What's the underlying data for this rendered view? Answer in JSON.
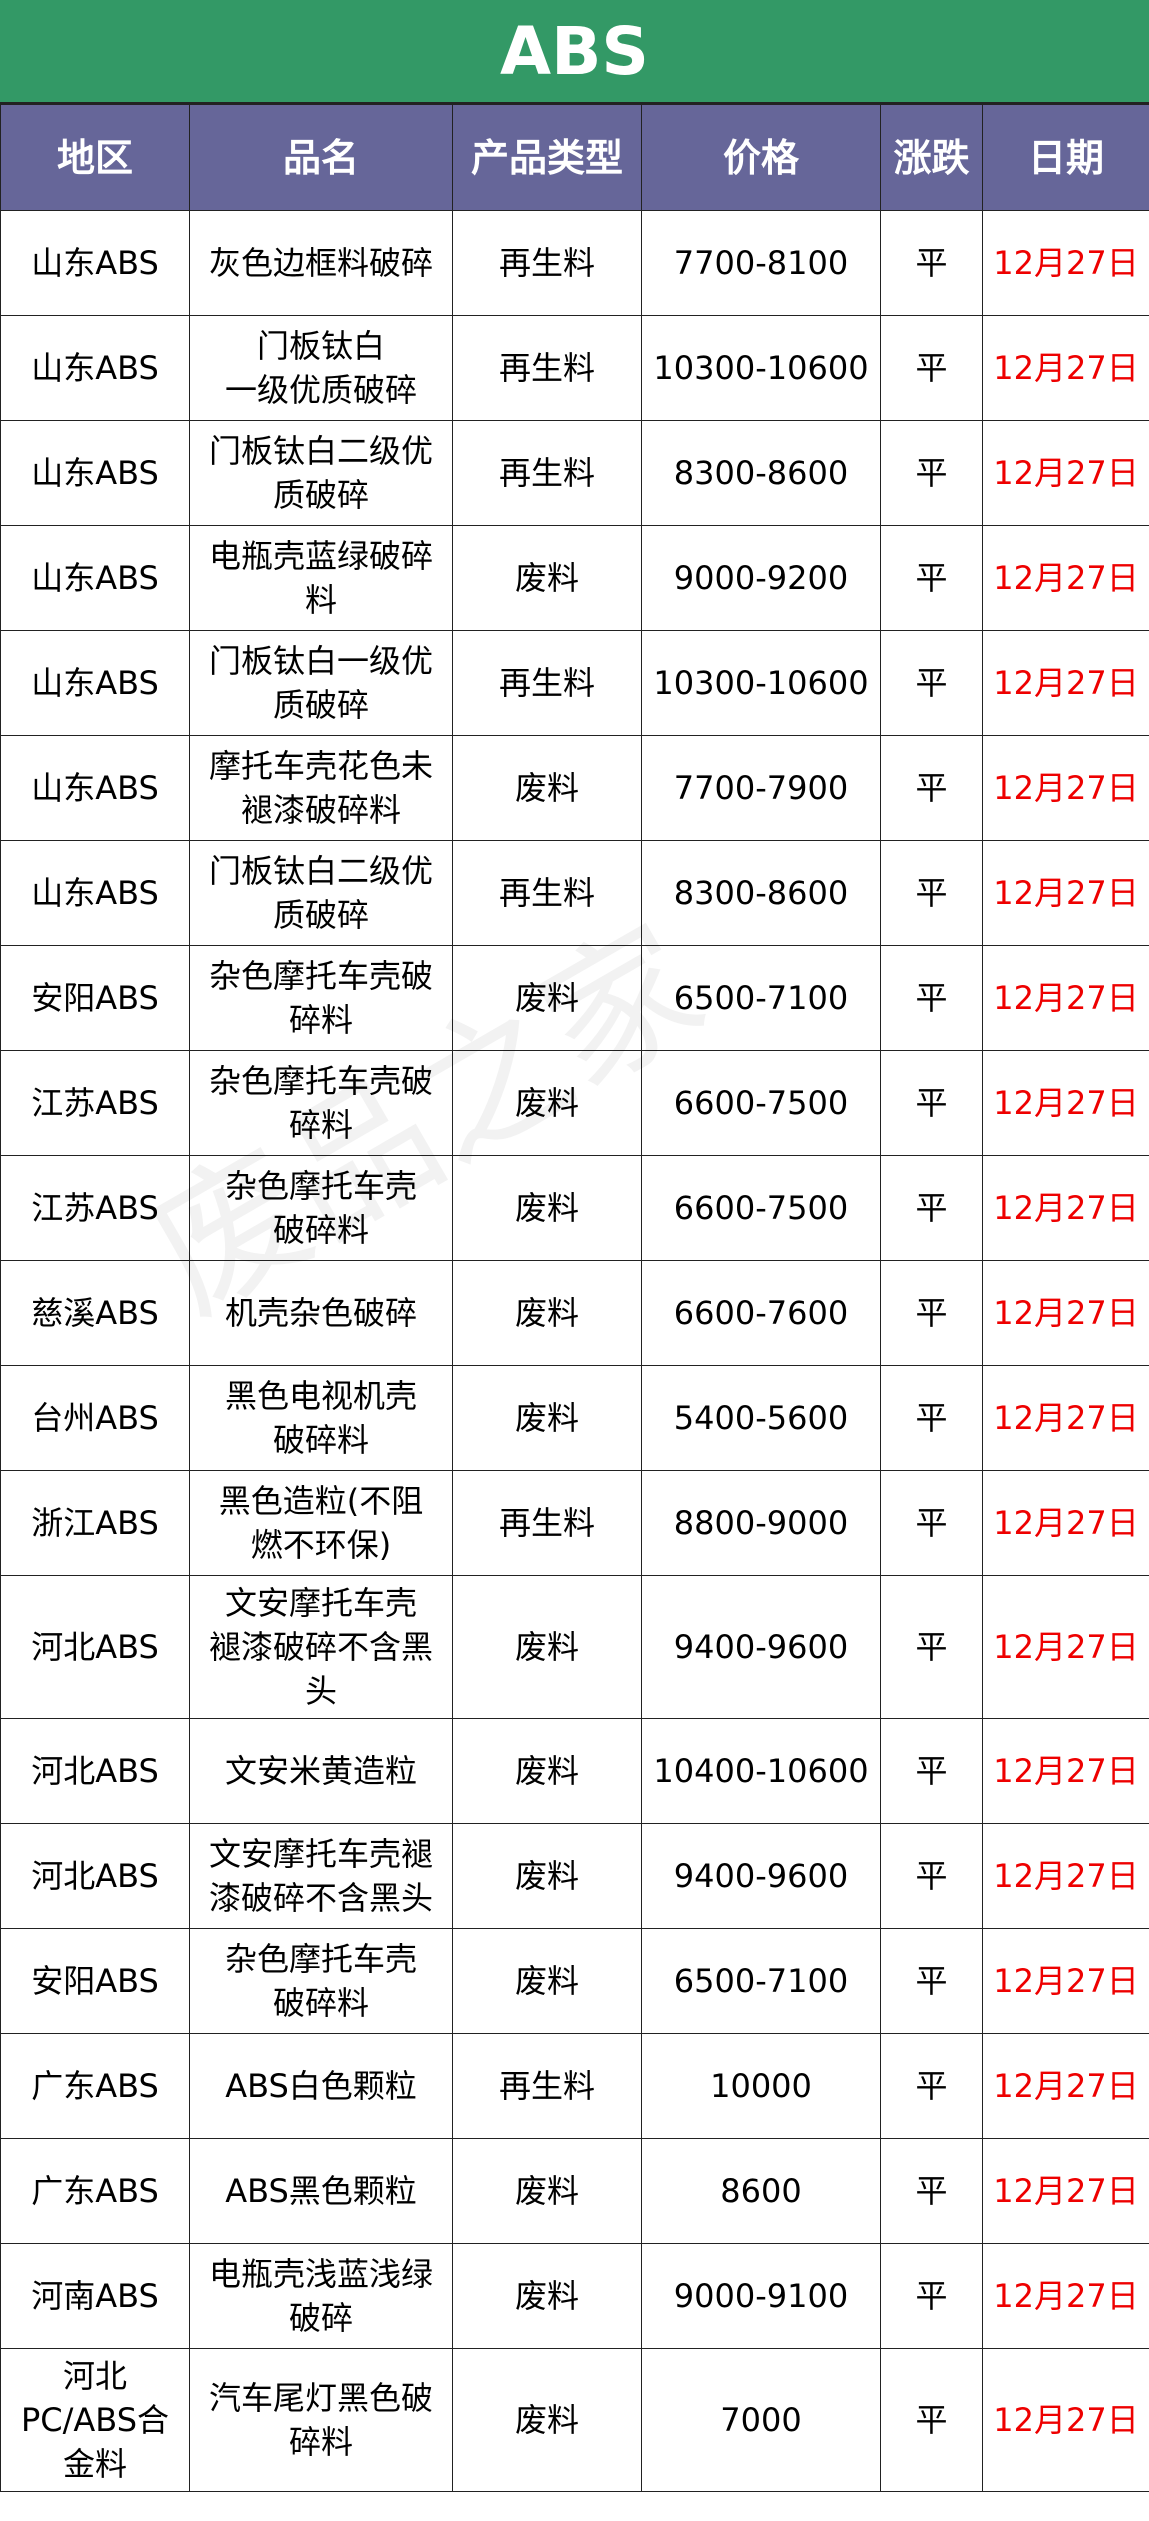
{
  "title": "ABS",
  "watermark": "废品之家",
  "headers": [
    "地区",
    "品名",
    "产品类型",
    "价格",
    "涨跌",
    "日期"
  ],
  "rows": [
    {
      "region": "山东ABS",
      "name": "灰色边框料破碎",
      "type": "再生料",
      "price": "7700-8100",
      "change": "平",
      "date": "12月27日"
    },
    {
      "region": "山东ABS",
      "name": "门板钛白\n一级优质破碎",
      "type": "再生料",
      "price": "10300-10600",
      "change": "平",
      "date": "12月27日"
    },
    {
      "region": "山东ABS",
      "name": "门板钛白二级优质破碎",
      "type": "再生料",
      "price": "8300-8600",
      "change": "平",
      "date": "12月27日"
    },
    {
      "region": "山东ABS",
      "name": "电瓶壳蓝绿破碎料",
      "type": "废料",
      "price": "9000-9200",
      "change": "平",
      "date": "12月27日"
    },
    {
      "region": "山东ABS",
      "name": "门板钛白一级优质破碎",
      "type": "再生料",
      "price": "10300-10600",
      "change": "平",
      "date": "12月27日"
    },
    {
      "region": "山东ABS",
      "name": "摩托车壳花色未褪漆破碎料",
      "type": "废料",
      "price": "7700-7900",
      "change": "平",
      "date": "12月27日"
    },
    {
      "region": "山东ABS",
      "name": "门板钛白二级优质破碎",
      "type": "再生料",
      "price": "8300-8600",
      "change": "平",
      "date": "12月27日"
    },
    {
      "region": "安阳ABS",
      "name": "杂色摩托车壳破碎料",
      "type": "废料",
      "price": "6500-7100",
      "change": "平",
      "date": "12月27日"
    },
    {
      "region": "江苏ABS",
      "name": "杂色摩托车壳破碎料",
      "type": "废料",
      "price": "6600-7500",
      "change": "平",
      "date": "12月27日"
    },
    {
      "region": "江苏ABS",
      "name": "杂色摩托车壳\n破碎料",
      "type": "废料",
      "price": "6600-7500",
      "change": "平",
      "date": "12月27日"
    },
    {
      "region": "慈溪ABS",
      "name": "机壳杂色破碎",
      "type": "废料",
      "price": "6600-7600",
      "change": "平",
      "date": "12月27日"
    },
    {
      "region": "台州ABS",
      "name": "黑色电视机壳\n破碎料",
      "type": "废料",
      "price": "5400-5600",
      "change": "平",
      "date": "12月27日"
    },
    {
      "region": "浙江ABS",
      "name": "黑色造粒(不阻\n燃不环保)",
      "type": "再生料",
      "price": "8800-9000",
      "change": "平",
      "date": "12月27日"
    },
    {
      "region": "河北ABS",
      "name": "文安摩托车壳\n褪漆破碎不含黑头",
      "type": "废料",
      "price": "9400-9600",
      "change": "平",
      "date": "12月27日"
    },
    {
      "region": "河北ABS",
      "name": "文安米黄造粒",
      "type": "废料",
      "price": "10400-10600",
      "change": "平",
      "date": "12月27日"
    },
    {
      "region": "河北ABS",
      "name": "文安摩托车壳褪漆破碎不含黑头",
      "type": "废料",
      "price": "9400-9600",
      "change": "平",
      "date": "12月27日"
    },
    {
      "region": "安阳ABS",
      "name": "杂色摩托车壳\n破碎料",
      "type": "废料",
      "price": "6500-7100",
      "change": "平",
      "date": "12月27日"
    },
    {
      "region": "广东ABS",
      "name": "ABS白色颗粒",
      "type": "再生料",
      "price": "10000",
      "change": "平",
      "date": "12月27日"
    },
    {
      "region": "广东ABS",
      "name": "ABS黑色颗粒",
      "type": "废料",
      "price": "8600",
      "change": "平",
      "date": "12月27日"
    },
    {
      "region": "河南ABS",
      "name": "电瓶壳浅蓝浅绿破碎",
      "type": "废料",
      "price": "9000-9100",
      "change": "平",
      "date": "12月27日"
    },
    {
      "region": "河北\nPC/ABS合\n金料",
      "name": "汽车尾灯黑色破碎料",
      "type": "废料",
      "price": "7000",
      "change": "平",
      "date": "12月27日"
    }
  ],
  "colors": {
    "title_bg": "#339966",
    "header_bg": "#666699",
    "date_text": "#ee0000"
  }
}
